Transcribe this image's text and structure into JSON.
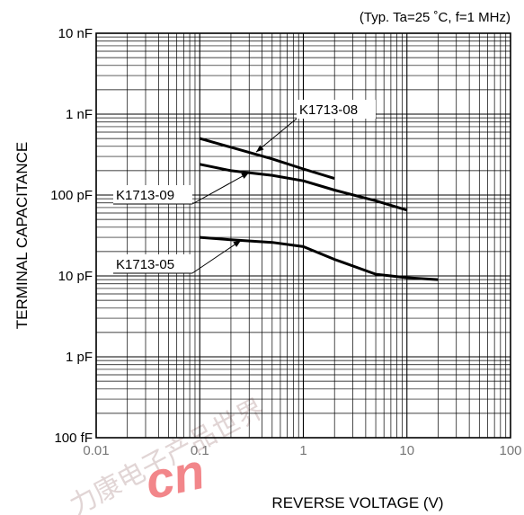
{
  "chart_data": {
    "type": "line",
    "title": "",
    "note": "(Typ. Ta=25 ˚C, f=1 MHz)",
    "xlabel": "REVERSE VOLTAGE (V)",
    "ylabel": "TERMINAL CAPACITANCE",
    "x_scale": "log",
    "y_scale": "log",
    "xlim": [
      0.01,
      100
    ],
    "ylim": [
      1e-13,
      1e-08
    ],
    "grid": true,
    "x_ticks": [
      {
        "value": 0.01,
        "label": "0.01"
      },
      {
        "value": 0.1,
        "label": "0.1"
      },
      {
        "value": 1,
        "label": "1"
      },
      {
        "value": 10,
        "label": "10"
      },
      {
        "value": 100,
        "label": "100"
      }
    ],
    "y_ticks": [
      {
        "value": 1e-13,
        "label": "100 fF"
      },
      {
        "value": 1e-12,
        "label": "1 pF"
      },
      {
        "value": 1e-11,
        "label": "10 pF"
      },
      {
        "value": 1e-10,
        "label": "100 pF"
      },
      {
        "value": 1e-09,
        "label": "1 nF"
      },
      {
        "value": 1e-08,
        "label": "10 nF"
      }
    ],
    "series": [
      {
        "name": "K1713-08",
        "x": [
          0.1,
          0.2,
          0.5,
          1,
          2
        ],
        "y": [
          5e-10,
          3.9e-10,
          2.8e-10,
          2.1e-10,
          1.6e-10
        ],
        "label_at": {
          "x": 0.35,
          "y": 3.4e-10
        }
      },
      {
        "name": "K1713-09",
        "x": [
          0.1,
          0.2,
          0.5,
          1,
          2,
          5,
          10
        ],
        "y": [
          2.4e-10,
          2e-10,
          1.75e-10,
          1.5e-10,
          1.15e-10,
          8.5e-11,
          6.5e-11
        ],
        "label_at": {
          "x": 0.3,
          "y": 1.9e-10
        }
      },
      {
        "name": "K1713-05",
        "x": [
          0.1,
          0.2,
          0.5,
          1,
          2,
          5,
          10,
          20
        ],
        "y": [
          3e-11,
          2.8e-11,
          2.6e-11,
          2.3e-11,
          1.6e-11,
          1.05e-11,
          9.5e-12,
          9e-12
        ],
        "label_at": {
          "x": 0.25,
          "y": 2.75e-11
        }
      }
    ]
  },
  "watermark": {
    "text": "力康电子产品世界",
    "latin": "cn",
    "color": "#e8242b"
  }
}
